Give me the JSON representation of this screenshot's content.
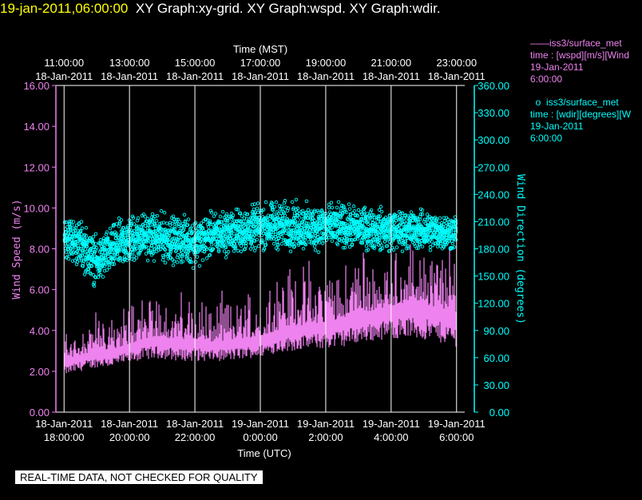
{
  "header": {
    "timestamp": "19-jan-2011,06:00:00",
    "graphs": "XY Graph:xy-grid.  XY Graph:wspd.  XY Graph:wdir."
  },
  "legend": {
    "wspd": {
      "name": "iss3/surface_met",
      "var": "time : [wspd][m/s][Wind",
      "date": "19-Jan-2011",
      "time": "6:00:00"
    },
    "wdir": {
      "name": "iss3/surface_met",
      "var": "time : [wdir][degrees][W",
      "date": "19-Jan-2011",
      "time": "6:00:00"
    }
  },
  "banner": "REAL-TIME DATA, NOT CHECKED FOR QUALITY",
  "colors": {
    "wspd": "#ee82ee",
    "wdir": "#00ffff",
    "axis_left": "#ee82ee",
    "axis_right": "#00ffff",
    "grid": "#ffffff"
  },
  "chart_data": {
    "type": "line",
    "top_axis_label": "Time (MST)",
    "bottom_axis_label": "Time (UTC)",
    "ylabel_left": "Wind Speed (m/s)",
    "ylabel_right": "Wind Direction (degrees)",
    "ylim_left": [
      0,
      16
    ],
    "ylim_right": [
      0,
      360
    ],
    "yticks_left": [
      "0.00",
      "2.00",
      "4.00",
      "6.00",
      "8.00",
      "10.00",
      "12.00",
      "14.00",
      "16.00"
    ],
    "yticks_right": [
      "0.00",
      "30.00",
      "60.00",
      "90.00",
      "120.00",
      "150.00",
      "180.00",
      "210.00",
      "240.00",
      "270.00",
      "300.00",
      "330.00",
      "360.00"
    ],
    "xlim_utc": [
      "2011-01-18 17:45",
      "2011-01-19 06:15"
    ],
    "top_ticks": [
      {
        "t": "11:00:00",
        "d": "18-Jan-2011"
      },
      {
        "t": "13:00:00",
        "d": "18-Jan-2011"
      },
      {
        "t": "15:00:00",
        "d": "18-Jan-2011"
      },
      {
        "t": "17:00:00",
        "d": "18-Jan-2011"
      },
      {
        "t": "19:00:00",
        "d": "18-Jan-2011"
      },
      {
        "t": "21:00:00",
        "d": "18-Jan-2011"
      },
      {
        "t": "23:00:00",
        "d": "18-Jan-2011"
      }
    ],
    "bottom_ticks": [
      {
        "d": "18-Jan-2011",
        "t": "18:00:00"
      },
      {
        "d": "18-Jan-2011",
        "t": "20:00:00"
      },
      {
        "d": "18-Jan-2011",
        "t": "22:00:00"
      },
      {
        "d": "19-Jan-2011",
        "t": "0:00:00"
      },
      {
        "d": "19-Jan-2011",
        "t": "2:00:00"
      },
      {
        "d": "19-Jan-2011",
        "t": "4:00:00"
      },
      {
        "d": "19-Jan-2011",
        "t": "6:00:00"
      }
    ],
    "grid_vertical": true,
    "series": [
      {
        "name": "iss3/surface_met wspd",
        "axis": "left",
        "x_hours_utc": [
          18.0,
          18.5,
          19.0,
          19.5,
          20.0,
          20.5,
          21.0,
          21.5,
          22.0,
          22.5,
          23.0,
          23.5,
          24.0,
          24.5,
          25.0,
          25.5,
          26.0,
          26.5,
          27.0,
          27.5,
          28.0,
          28.5,
          29.0,
          29.5,
          30.0
        ],
        "mean": [
          2.5,
          2.8,
          3.0,
          3.1,
          3.3,
          3.6,
          3.7,
          3.5,
          3.6,
          3.4,
          3.5,
          3.6,
          3.7,
          4.0,
          4.2,
          4.3,
          4.4,
          4.6,
          4.8,
          5.0,
          5.2,
          5.4,
          5.3,
          5.1,
          4.9
        ],
        "min": [
          1.8,
          2.0,
          2.2,
          2.2,
          2.4,
          2.6,
          2.6,
          2.5,
          2.5,
          2.5,
          2.5,
          2.6,
          2.7,
          2.9,
          3.0,
          3.1,
          3.1,
          3.2,
          3.4,
          3.5,
          3.6,
          3.6,
          3.5,
          3.4,
          3.2
        ],
        "max": [
          4.2,
          4.6,
          5.0,
          5.2,
          5.6,
          6.2,
          6.0,
          5.6,
          5.8,
          5.5,
          5.7,
          6.0,
          6.2,
          6.7,
          7.2,
          7.4,
          7.5,
          7.6,
          7.8,
          8.0,
          8.2,
          8.4,
          8.2,
          8.0,
          7.6
        ]
      },
      {
        "name": "iss3/surface_met wdir",
        "axis": "right",
        "x_hours_utc": [
          18.0,
          18.5,
          19.0,
          19.5,
          20.0,
          20.5,
          21.0,
          21.5,
          22.0,
          22.5,
          23.0,
          23.5,
          24.0,
          24.5,
          25.0,
          25.5,
          26.0,
          26.5,
          27.0,
          27.5,
          28.0,
          28.5,
          29.0,
          29.5,
          30.0
        ],
        "mean": [
          195,
          185,
          165,
          180,
          190,
          195,
          192,
          190,
          188,
          195,
          198,
          200,
          204,
          206,
          205,
          203,
          205,
          204,
          203,
          202,
          200,
          201,
          200,
          199,
          198
        ],
        "min": [
          160,
          150,
          140,
          150,
          160,
          165,
          160,
          158,
          155,
          165,
          170,
          175,
          178,
          180,
          178,
          176,
          178,
          178,
          176,
          175,
          174,
          175,
          174,
          174,
          172
        ],
        "max": [
          225,
          220,
          210,
          220,
          235,
          230,
          230,
          225,
          225,
          230,
          235,
          240,
          245,
          250,
          248,
          245,
          245,
          240,
          238,
          236,
          235,
          232,
          232,
          230,
          228
        ]
      }
    ]
  }
}
